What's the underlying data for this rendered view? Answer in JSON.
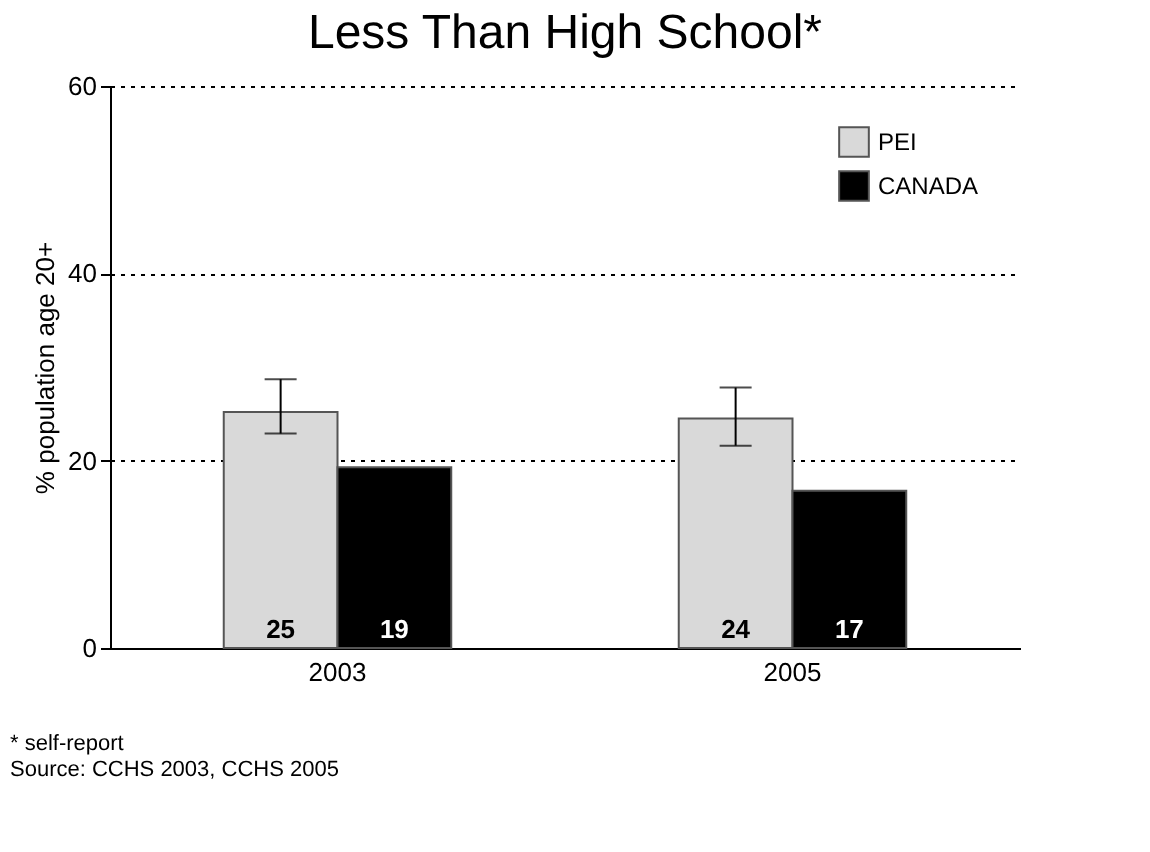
{
  "chart_data": {
    "type": "bar",
    "title": "Less Than High School*",
    "ylabel": "% population age 20+",
    "categories": [
      "2003",
      "2005"
    ],
    "series": [
      {
        "name": "PEI",
        "color": "#d9d9d9",
        "values": [
          25.2,
          24.5
        ],
        "errors": [
          [
            22.9,
            28.7
          ],
          [
            21.6,
            27.8
          ]
        ],
        "value_labels": [
          "25",
          "24"
        ]
      },
      {
        "name": "CANADA",
        "color": "#000000",
        "values": [
          19.3,
          16.8
        ],
        "value_labels": [
          "19",
          "17"
        ]
      }
    ],
    "ylim": [
      0,
      60
    ],
    "yticks": [
      0,
      20,
      40,
      60
    ],
    "grid": "y",
    "legend": "top right",
    "annotations": [
      "* self-report",
      "Source: CCHS 2003, CCHS 2005"
    ]
  }
}
